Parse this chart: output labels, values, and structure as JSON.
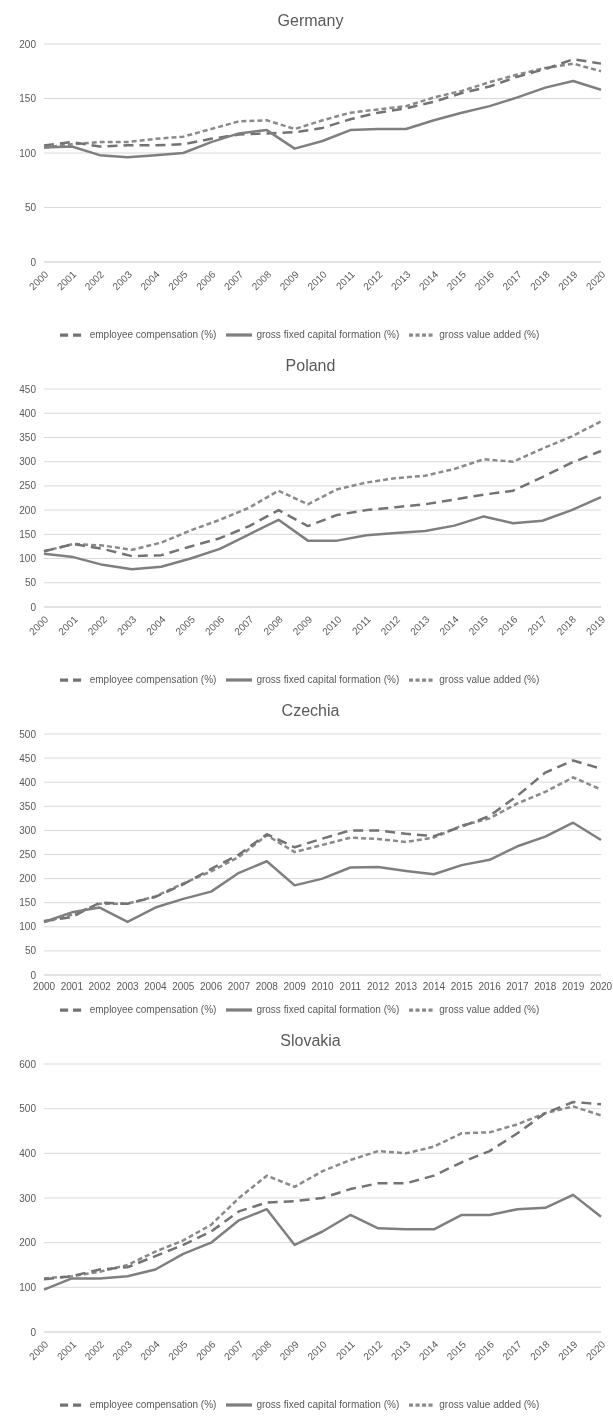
{
  "chart_data": [
    {
      "type": "line",
      "title": "Germany",
      "categories": [
        "2000",
        "2001",
        "2002",
        "2003",
        "2004",
        "2005",
        "2006",
        "2007",
        "2008",
        "2009",
        "2010",
        "2011",
        "2012",
        "2013",
        "2014",
        "2015",
        "2016",
        "2017",
        "2018",
        "2019",
        "2020"
      ],
      "ylim": [
        0,
        200
      ],
      "yticks": [
        0,
        50,
        100,
        150,
        200
      ],
      "grid": "y",
      "legend": "bottom",
      "series": [
        {
          "name": "gross value added (%)",
          "color": "#8a8a8a",
          "line_style": "dotted",
          "values": [
            105,
            108,
            110,
            110,
            113,
            115,
            122,
            129,
            130,
            122,
            130,
            137,
            140,
            143,
            151,
            157,
            165,
            172,
            178,
            182,
            175
          ]
        },
        {
          "name": "employee compensation (%)",
          "color": "#737373",
          "line_style": "dashed",
          "values": [
            107,
            110,
            106,
            107,
            107,
            108,
            113,
            117,
            118,
            119,
            123,
            131,
            137,
            141,
            147,
            155,
            161,
            170,
            177,
            186,
            182
          ]
        },
        {
          "name": "gross fixed capital formation (%)",
          "color": "#7f7f7f",
          "line_style": "solid",
          "values": [
            105,
            106,
            98,
            96,
            98,
            100,
            110,
            118,
            121,
            104,
            111,
            121,
            122,
            122,
            130,
            137,
            143,
            151,
            160,
            166,
            158
          ]
        }
      ]
    },
    {
      "type": "line",
      "title": "Poland",
      "categories": [
        "2000",
        "2001",
        "2002",
        "2003",
        "2004",
        "2005",
        "2006",
        "2007",
        "2008",
        "2009",
        "2010",
        "2011",
        "2012",
        "2013",
        "2014",
        "2015",
        "2016",
        "2017",
        "2018",
        "2019"
      ],
      "ylim": [
        0,
        450
      ],
      "yticks": [
        0,
        50,
        100,
        150,
        200,
        250,
        300,
        350,
        400,
        450
      ],
      "grid": "y",
      "legend": "bottom",
      "series": [
        {
          "name": "gross value added (%)",
          "color": "#8a8a8a",
          "line_style": "dotted",
          "values": [
            115,
            130,
            127,
            118,
            133,
            158,
            180,
            205,
            240,
            212,
            243,
            257,
            266,
            271,
            285,
            305,
            300,
            327,
            352,
            383
          ]
        },
        {
          "name": "employee compensation (%)",
          "color": "#737373",
          "line_style": "dashed",
          "values": [
            115,
            130,
            120,
            105,
            107,
            125,
            142,
            167,
            200,
            167,
            190,
            200,
            206,
            212,
            222,
            232,
            240,
            268,
            298,
            322
          ]
        },
        {
          "name": "gross fixed capital formation (%)",
          "color": "#7f7f7f",
          "line_style": "solid",
          "values": [
            110,
            103,
            87,
            78,
            83,
            100,
            120,
            150,
            180,
            137,
            137,
            148,
            153,
            157,
            168,
            187,
            173,
            178,
            200,
            227
          ]
        }
      ]
    },
    {
      "type": "line",
      "title": "Czechia",
      "categories": [
        "2000",
        "2001",
        "2002",
        "2003",
        "2004",
        "2005",
        "2006",
        "2007",
        "2008",
        "2009",
        "2010",
        "2011",
        "2012",
        "2013",
        "2014",
        "2015",
        "2016",
        "2017",
        "2018",
        "2019",
        "2020"
      ],
      "ylim": [
        0,
        500
      ],
      "yticks": [
        0,
        50,
        100,
        150,
        200,
        250,
        300,
        350,
        400,
        450,
        500
      ],
      "grid": "y",
      "legend": "bottom",
      "series": [
        {
          "name": "gross value added (%)",
          "color": "#8a8a8a",
          "line_style": "dotted",
          "values": [
            110,
            125,
            148,
            148,
            163,
            190,
            215,
            245,
            290,
            255,
            270,
            285,
            282,
            276,
            285,
            310,
            325,
            356,
            380,
            410,
            385
          ]
        },
        {
          "name": "employee compensation (%)",
          "color": "#737373",
          "line_style": "dashed",
          "values": [
            112,
            120,
            150,
            148,
            162,
            188,
            220,
            250,
            292,
            265,
            283,
            300,
            300,
            293,
            288,
            308,
            330,
            372,
            420,
            445,
            428
          ]
        },
        {
          "name": "gross fixed capital formation (%)",
          "color": "#7f7f7f",
          "line_style": "solid",
          "values": [
            110,
            130,
            140,
            110,
            140,
            158,
            173,
            212,
            236,
            186,
            200,
            223,
            224,
            216,
            209,
            228,
            239,
            267,
            287,
            316,
            280
          ]
        }
      ]
    },
    {
      "type": "line",
      "title": "Slovakia",
      "categories": [
        "2000",
        "2001",
        "2002",
        "2003",
        "2004",
        "2005",
        "2006",
        "2007",
        "2008",
        "2009",
        "2010",
        "2011",
        "2012",
        "2013",
        "2014",
        "2015",
        "2016",
        "2017",
        "2018",
        "2019",
        "2020"
      ],
      "ylim": [
        0,
        600
      ],
      "yticks": [
        0,
        100,
        200,
        300,
        400,
        500,
        600
      ],
      "grid": "y",
      "legend": "bottom",
      "series": [
        {
          "name": "gross value added (%)",
          "color": "#8a8a8a",
          "line_style": "dotted",
          "values": [
            120,
            125,
            135,
            150,
            180,
            205,
            240,
            300,
            350,
            325,
            360,
            385,
            405,
            400,
            415,
            445,
            447,
            465,
            490,
            505,
            485
          ]
        },
        {
          "name": "employee compensation (%)",
          "color": "#737373",
          "line_style": "dashed",
          "values": [
            118,
            125,
            140,
            145,
            170,
            195,
            225,
            270,
            290,
            293,
            300,
            320,
            333,
            333,
            350,
            380,
            405,
            445,
            490,
            515,
            510
          ]
        },
        {
          "name": "gross fixed capital formation (%)",
          "color": "#7f7f7f",
          "line_style": "solid",
          "values": [
            95,
            120,
            120,
            125,
            140,
            175,
            200,
            250,
            275,
            195,
            225,
            262,
            232,
            230,
            230,
            262,
            262,
            275,
            278,
            307,
            258
          ]
        }
      ]
    }
  ]
}
